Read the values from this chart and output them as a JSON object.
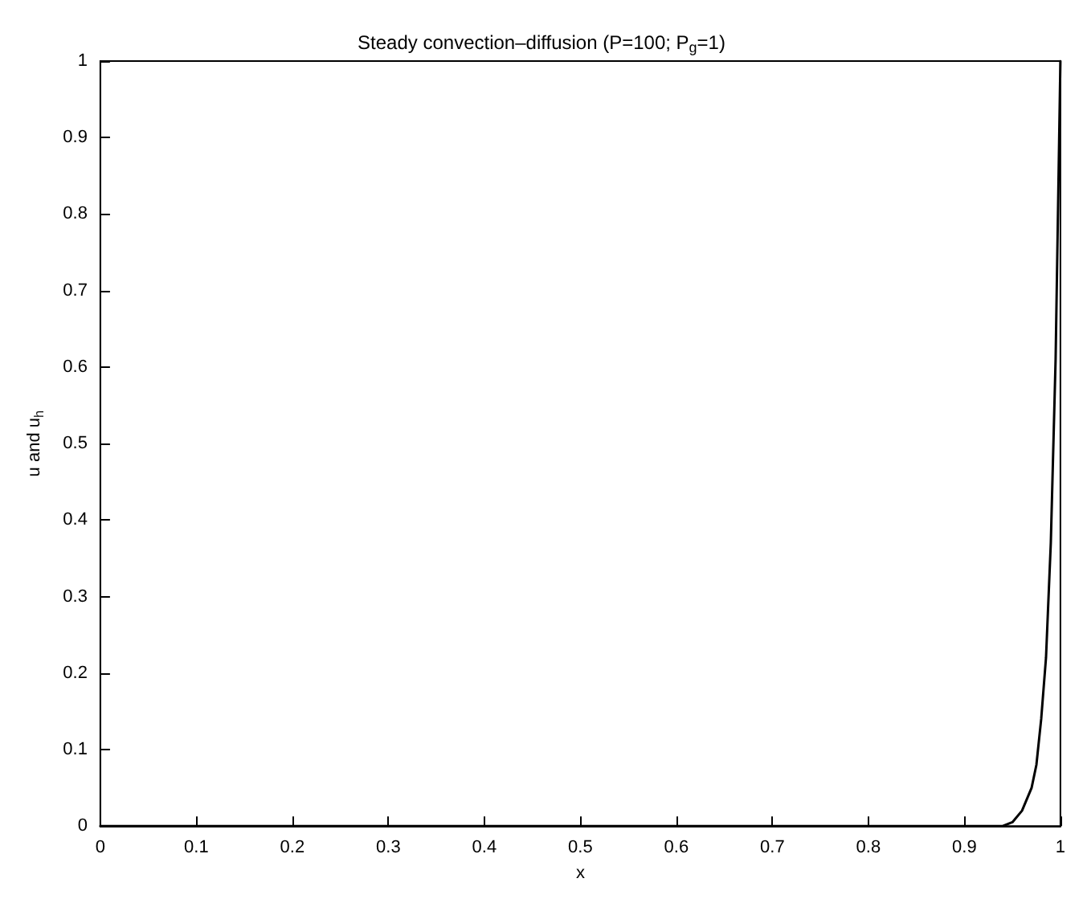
{
  "chart_data": {
    "type": "line",
    "title": "Steady convection–diffusion (P=100; P$_{g}$=1)",
    "xlabel": "x",
    "ylabel": "u and u$_{h}$",
    "x": [
      0,
      0.1,
      0.2,
      0.3,
      0.4,
      0.5,
      0.6,
      0.7,
      0.8,
      0.9,
      0.94,
      0.95,
      0.96,
      0.97,
      0.975,
      0.98,
      0.985,
      0.99,
      0.995,
      1
    ],
    "series": [
      {
        "color": "#000000",
        "values": [
          0,
          0,
          0,
          0,
          0,
          0,
          0,
          0,
          0,
          0,
          0,
          0.005,
          0.02,
          0.05,
          0.08,
          0.14,
          0.22,
          0.37,
          0.61,
          1
        ]
      }
    ],
    "xlim": [
      0,
      1
    ],
    "ylim": [
      0,
      1
    ],
    "xticks": [
      0,
      0.1,
      0.2,
      0.3,
      0.4,
      0.5,
      0.6,
      0.7,
      0.8,
      0.9,
      1
    ],
    "yticks": [
      0,
      0.1,
      0.2,
      0.3,
      0.4,
      0.5,
      0.6,
      0.7,
      0.8,
      0.9,
      1
    ],
    "marker": "none",
    "line_style": "solid"
  }
}
